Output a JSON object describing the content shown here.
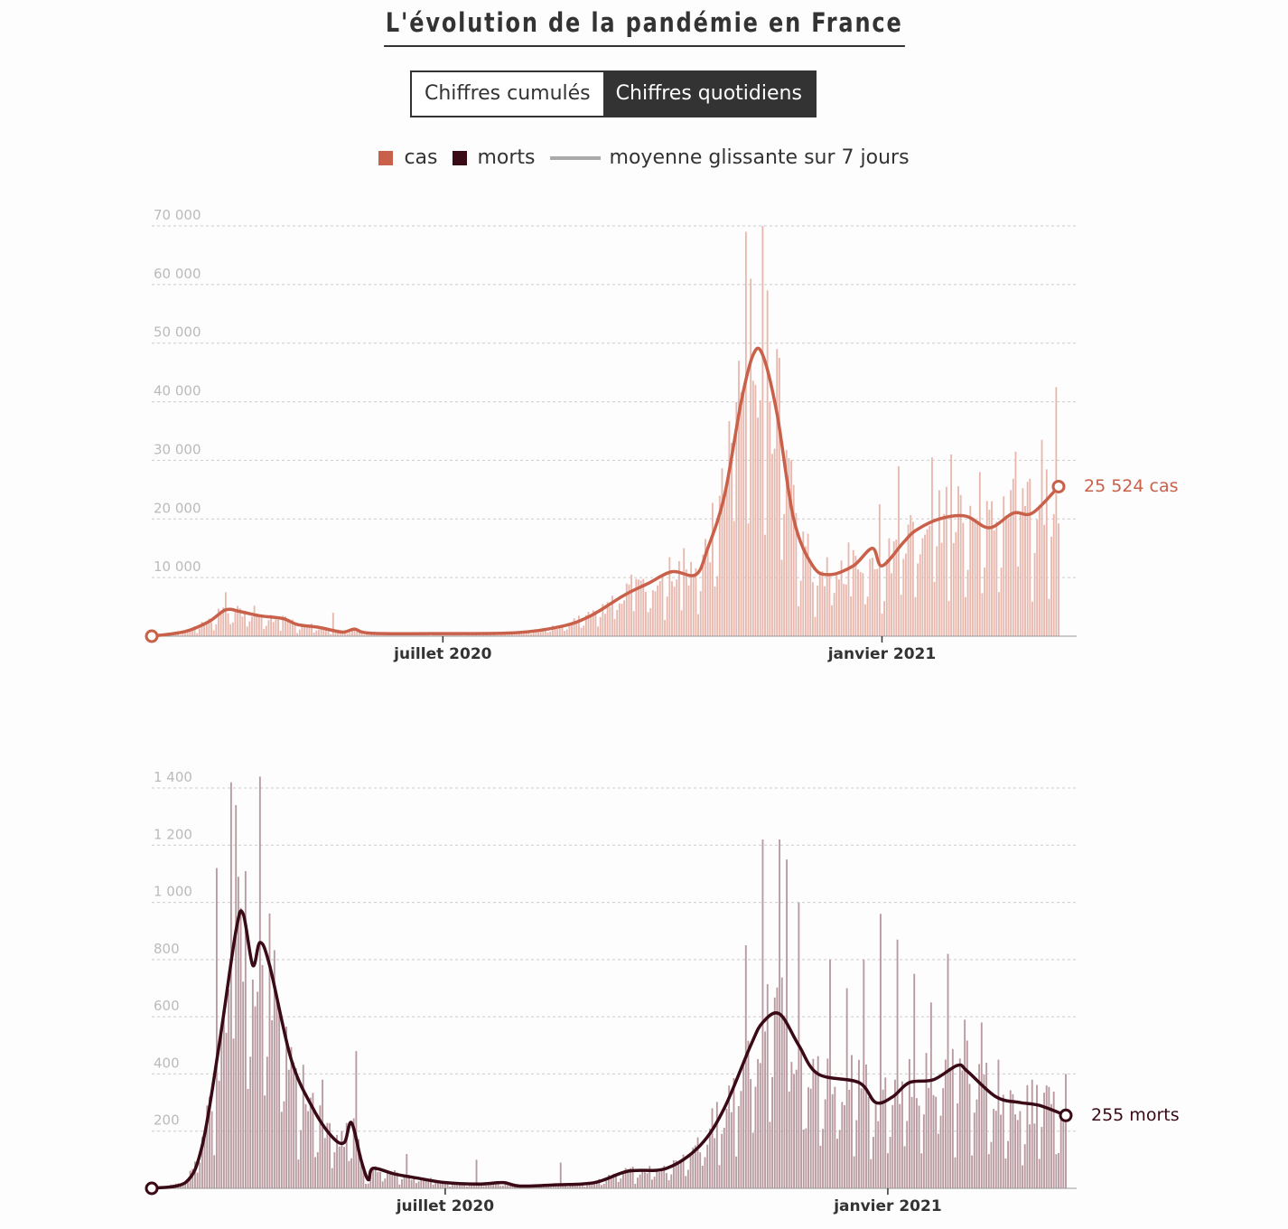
{
  "title": "L'évolution de la pandémie en France",
  "toggle": {
    "cumulative_label": "Chiffres cumulés",
    "daily_label": "Chiffres quotidiens",
    "active": "daily"
  },
  "legend": {
    "cases_label": "cas",
    "deaths_label": "morts",
    "avg_label": "moyenne glissante sur 7 jours"
  },
  "colors": {
    "cases": "#c8604a",
    "cases_bar": "#e8b8ae",
    "deaths": "#3a0a16",
    "deaths_bar": "#b89aa0",
    "avg_legend": "#aaaaaa"
  },
  "chart_data": [
    {
      "type": "bar",
      "name": "cas",
      "x_start": "2020-03-01",
      "x_end": "2021-03-16",
      "x_ticks": [
        {
          "date": "2020-07-01",
          "label": "juillet 2020"
        },
        {
          "date": "2021-01-01",
          "label": "janvier 2021"
        }
      ],
      "y_ticks": [
        {
          "value": 10000,
          "label": "10 000"
        },
        {
          "value": 20000,
          "label": "20 000"
        },
        {
          "value": 30000,
          "label": "30 000"
        },
        {
          "value": 40000,
          "label": "40 000"
        },
        {
          "value": 50000,
          "label": "50 000"
        },
        {
          "value": 60000,
          "label": "60 000"
        },
        {
          "value": 70000,
          "label": "70 000"
        }
      ],
      "ylim": [
        0,
        70000
      ],
      "grid": true,
      "moving_average": [
        [
          "2020-03-01",
          0
        ],
        [
          "2020-03-15",
          800
        ],
        [
          "2020-03-25",
          2500
        ],
        [
          "2020-04-01",
          4500
        ],
        [
          "2020-04-07",
          4200
        ],
        [
          "2020-04-15",
          3500
        ],
        [
          "2020-04-25",
          3000
        ],
        [
          "2020-05-01",
          2000
        ],
        [
          "2020-05-10",
          1500
        ],
        [
          "2020-05-20",
          700
        ],
        [
          "2020-05-25",
          1200
        ],
        [
          "2020-06-01",
          500
        ],
        [
          "2020-07-01",
          450
        ],
        [
          "2020-08-01",
          600
        ],
        [
          "2020-08-20",
          1700
        ],
        [
          "2020-09-01",
          3500
        ],
        [
          "2020-09-15",
          7000
        ],
        [
          "2020-09-25",
          9000
        ],
        [
          "2020-10-05",
          11000
        ],
        [
          "2020-10-15",
          10500
        ],
        [
          "2020-10-20",
          15000
        ],
        [
          "2020-10-27",
          24000
        ],
        [
          "2020-11-03",
          40000
        ],
        [
          "2020-11-08",
          48000
        ],
        [
          "2020-11-12",
          48000
        ],
        [
          "2020-11-18",
          38000
        ],
        [
          "2020-11-25",
          20000
        ],
        [
          "2020-12-03",
          12000
        ],
        [
          "2020-12-10",
          10500
        ],
        [
          "2020-12-20",
          12000
        ],
        [
          "2020-12-28",
          15000
        ],
        [
          "2021-01-01",
          12000
        ],
        [
          "2021-01-10",
          16000
        ],
        [
          "2021-01-15",
          18000
        ],
        [
          "2021-01-25",
          20000
        ],
        [
          "2021-02-05",
          20500
        ],
        [
          "2021-02-15",
          18500
        ],
        [
          "2021-02-25",
          21000
        ],
        [
          "2021-03-05",
          21000
        ],
        [
          "2021-03-16",
          25524
        ]
      ],
      "daily_spikes": [
        [
          "2020-04-01",
          7500
        ],
        [
          "2020-04-13",
          5200
        ],
        [
          "2020-04-25",
          3500
        ],
        [
          "2020-05-16",
          4000
        ],
        [
          "2020-09-18",
          10500
        ],
        [
          "2020-10-10",
          15000
        ],
        [
          "2020-10-30",
          33000
        ],
        [
          "2020-11-02",
          47000
        ],
        [
          "2020-11-05",
          69000
        ],
        [
          "2020-11-07",
          61000
        ],
        [
          "2020-11-12",
          70000
        ],
        [
          "2020-11-14",
          59000
        ],
        [
          "2020-11-19",
          47500
        ],
        [
          "2020-11-24",
          30000
        ],
        [
          "2020-12-18",
          16000
        ],
        [
          "2020-12-31",
          22500
        ],
        [
          "2021-01-08",
          29000
        ],
        [
          "2021-01-22",
          30500
        ],
        [
          "2021-01-30",
          31000
        ],
        [
          "2021-02-11",
          28000
        ],
        [
          "2021-02-26",
          31500
        ],
        [
          "2021-03-09",
          33500
        ],
        [
          "2021-03-15",
          42500
        ]
      ],
      "end_value": 25524,
      "end_label": "25 524 cas"
    },
    {
      "type": "bar",
      "name": "morts",
      "x_start": "2020-03-01",
      "x_end": "2021-03-16",
      "x_ticks": [
        {
          "date": "2020-07-01",
          "label": "juillet 2020"
        },
        {
          "date": "2021-01-01",
          "label": "janvier 2021"
        }
      ],
      "y_ticks": [
        {
          "value": 200,
          "label": "200"
        },
        {
          "value": 400,
          "label": "400"
        },
        {
          "value": 600,
          "label": "600"
        },
        {
          "value": 800,
          "label": "800"
        },
        {
          "value": 1000,
          "label": "1 000"
        },
        {
          "value": 1200,
          "label": "1 200"
        },
        {
          "value": 1400,
          "label": "1 400"
        }
      ],
      "ylim": [
        0,
        1400
      ],
      "grid": true,
      "moving_average": [
        [
          "2020-03-01",
          0
        ],
        [
          "2020-03-15",
          20
        ],
        [
          "2020-03-22",
          150
        ],
        [
          "2020-03-29",
          500
        ],
        [
          "2020-04-05",
          900
        ],
        [
          "2020-04-08",
          960
        ],
        [
          "2020-04-12",
          780
        ],
        [
          "2020-04-15",
          860
        ],
        [
          "2020-04-19",
          780
        ],
        [
          "2020-04-28",
          450
        ],
        [
          "2020-05-07",
          280
        ],
        [
          "2020-05-15",
          180
        ],
        [
          "2020-05-20",
          160
        ],
        [
          "2020-05-23",
          230
        ],
        [
          "2020-05-27",
          100
        ],
        [
          "2020-05-30",
          30
        ],
        [
          "2020-06-01",
          70
        ],
        [
          "2020-06-10",
          50
        ],
        [
          "2020-06-20",
          35
        ],
        [
          "2020-07-01",
          20
        ],
        [
          "2020-07-15",
          15
        ],
        [
          "2020-07-25",
          20
        ],
        [
          "2020-08-01",
          8
        ],
        [
          "2020-08-15",
          12
        ],
        [
          "2020-09-01",
          20
        ],
        [
          "2020-09-15",
          60
        ],
        [
          "2020-10-01",
          70
        ],
        [
          "2020-10-15",
          150
        ],
        [
          "2020-10-25",
          280
        ],
        [
          "2020-11-05",
          500
        ],
        [
          "2020-11-10",
          580
        ],
        [
          "2020-11-17",
          610
        ],
        [
          "2020-11-25",
          500
        ],
        [
          "2020-12-03",
          400
        ],
        [
          "2020-12-20",
          370
        ],
        [
          "2020-12-27",
          300
        ],
        [
          "2021-01-03",
          320
        ],
        [
          "2021-01-10",
          370
        ],
        [
          "2021-01-20",
          380
        ],
        [
          "2021-01-30",
          430
        ],
        [
          "2021-02-03",
          410
        ],
        [
          "2021-02-15",
          320
        ],
        [
          "2021-02-25",
          300
        ],
        [
          "2021-03-05",
          290
        ],
        [
          "2021-03-16",
          255
        ]
      ],
      "daily_spikes": [
        [
          "2020-03-28",
          1120
        ],
        [
          "2020-04-03",
          1420
        ],
        [
          "2020-04-05",
          1340
        ],
        [
          "2020-04-15",
          1440
        ],
        [
          "2020-04-30",
          420
        ],
        [
          "2020-05-11",
          380
        ],
        [
          "2020-05-25",
          480
        ],
        [
          "2020-06-15",
          120
        ],
        [
          "2020-07-14",
          100
        ],
        [
          "2020-08-18",
          90
        ],
        [
          "2020-10-13",
          150
        ],
        [
          "2020-10-20",
          280
        ],
        [
          "2020-11-03",
          850
        ],
        [
          "2020-11-10",
          1220
        ],
        [
          "2020-11-17",
          1220
        ],
        [
          "2020-11-20",
          1150
        ],
        [
          "2020-11-25",
          1000
        ],
        [
          "2020-12-08",
          800
        ],
        [
          "2020-12-15",
          700
        ],
        [
          "2020-12-22",
          800
        ],
        [
          "2020-12-29",
          960
        ],
        [
          "2021-01-05",
          870
        ],
        [
          "2021-01-12",
          750
        ],
        [
          "2021-01-19",
          650
        ],
        [
          "2021-01-26",
          820
        ],
        [
          "2021-02-02",
          590
        ],
        [
          "2021-02-09",
          580
        ],
        [
          "2021-02-16",
          450
        ],
        [
          "2021-03-02",
          380
        ],
        [
          "2021-03-16",
          400
        ]
      ],
      "end_value": 255,
      "end_label": "255 morts"
    }
  ]
}
